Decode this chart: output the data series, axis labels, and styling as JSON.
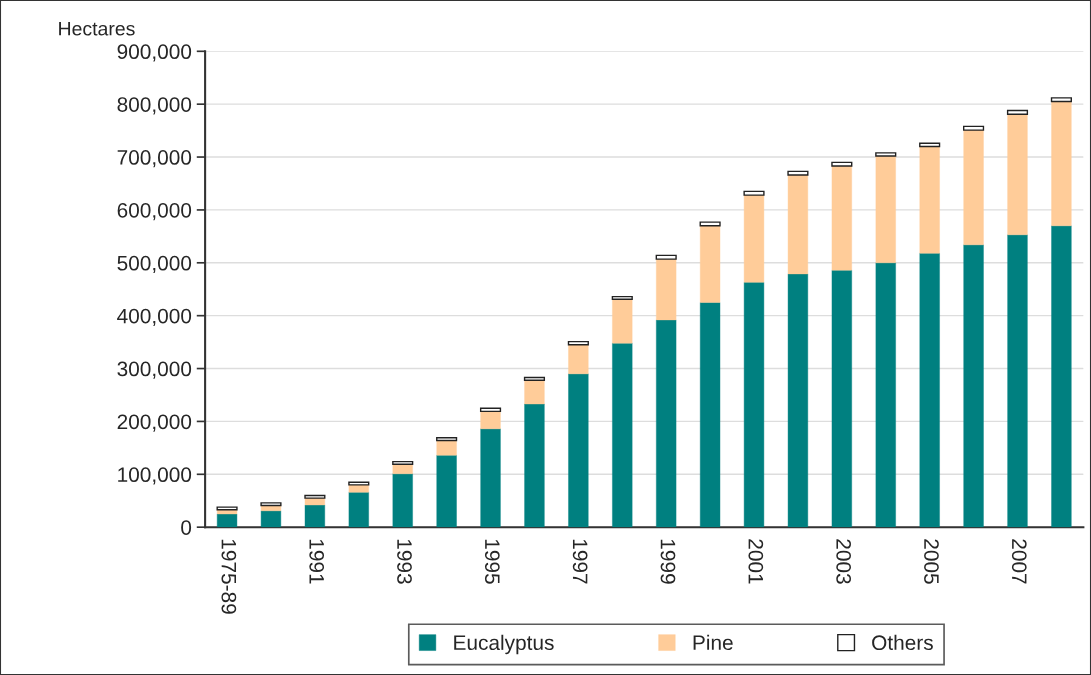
{
  "chart_data": {
    "type": "bar",
    "stacked": true,
    "ylabel": "Hectares",
    "categories": [
      "1975-89",
      null,
      "1991",
      null,
      "1993",
      null,
      "1995",
      null,
      "1997",
      null,
      "1999",
      null,
      "2001",
      null,
      "2003",
      null,
      "2005",
      null,
      "2007",
      null
    ],
    "series": [
      {
        "name": "Eucalyptus",
        "color": "#008080",
        "values": [
          25000,
          31000,
          42000,
          66000,
          101000,
          136000,
          186000,
          233000,
          290000,
          348000,
          392000,
          425000,
          463000,
          479000,
          486000,
          500000,
          518000,
          534000,
          553000,
          570000
        ]
      },
      {
        "name": "Pine",
        "color": "#ffcc99",
        "values": [
          8000,
          10000,
          13000,
          14000,
          18000,
          28000,
          33000,
          45000,
          55000,
          83000,
          115000,
          145000,
          165000,
          187000,
          197000,
          202000,
          202000,
          217000,
          228000,
          235000
        ]
      },
      {
        "name": "Others",
        "color": "#ffffff",
        "values": [
          5000,
          5000,
          5000,
          5000,
          5000,
          5000,
          6000,
          5000,
          6000,
          5000,
          7000,
          7000,
          7000,
          7000,
          7000,
          6000,
          6000,
          7000,
          7000,
          7000
        ]
      }
    ],
    "ylim": [
      0,
      900000
    ],
    "yticks": [
      {
        "value": 0,
        "label": "0"
      },
      {
        "value": 100000,
        "label": "100,000"
      },
      {
        "value": 200000,
        "label": "200,000"
      },
      {
        "value": 300000,
        "label": "300,000"
      },
      {
        "value": 400000,
        "label": "400,000"
      },
      {
        "value": 500000,
        "label": "500,000"
      },
      {
        "value": 600000,
        "label": "600,000"
      },
      {
        "value": 700000,
        "label": "700,000"
      },
      {
        "value": 800000,
        "label": "800,000"
      },
      {
        "value": 900000,
        "label": "900,000"
      }
    ],
    "grid": "y",
    "legend": "bottom"
  }
}
